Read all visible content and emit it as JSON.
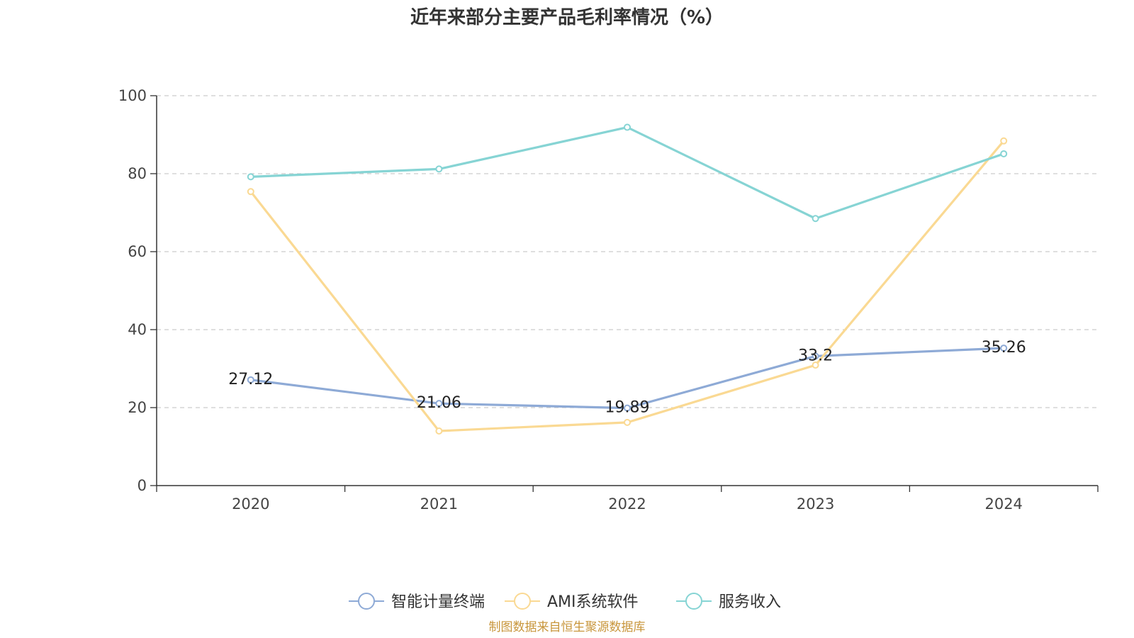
{
  "chart_data": {
    "type": "line",
    "title": "近年来部分主要产品毛利率情况（%）",
    "categories": [
      "2020",
      "2021",
      "2022",
      "2023",
      "2024"
    ],
    "ylim": [
      0,
      100
    ],
    "yticks": [
      0,
      20,
      40,
      60,
      80,
      100
    ],
    "grid": true,
    "legend_position": "bottom",
    "series": [
      {
        "name": "智能计量终端",
        "color": "#8eaad6",
        "values": [
          27.12,
          21.06,
          19.89,
          33.2,
          35.26
        ],
        "labels": [
          "27.12",
          "21.06",
          "19.89",
          "33.2",
          "35.26"
        ]
      },
      {
        "name": "AMI系统软件",
        "color": "#fad993",
        "values": [
          75.4,
          14.0,
          16.2,
          30.9,
          88.4
        ]
      },
      {
        "name": "服务收入",
        "color": "#86d4d4",
        "values": [
          79.2,
          81.2,
          91.9,
          68.5,
          85.1
        ]
      }
    ],
    "source": "制图数据来自恒生聚源数据库"
  }
}
